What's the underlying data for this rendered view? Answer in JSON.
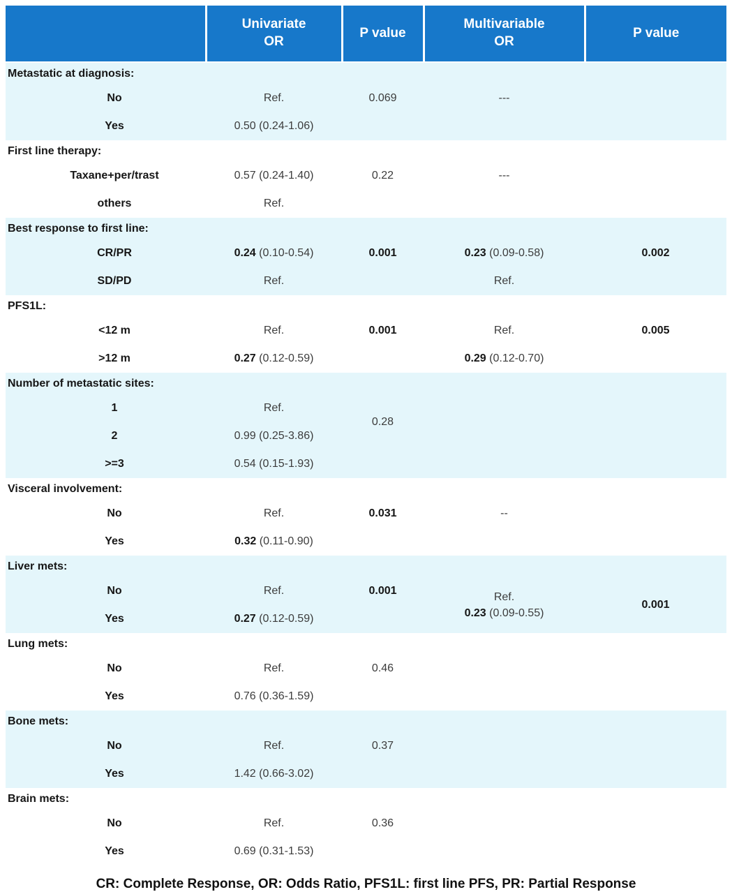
{
  "palette": {
    "header_bg": "#1778CA",
    "header_text": "#FFFFFF",
    "band_blue": "#E4F6FB",
    "band_white": "#FFFFFF",
    "value_text": "#3C3C3C",
    "label_text": "#161616"
  },
  "header": {
    "columns": [
      "",
      "Univariate\nOR",
      "P value",
      "Multivariable\nOR",
      "P value"
    ]
  },
  "rows": [
    {
      "type": "group",
      "band": "blue",
      "label": "Metastatic at diagnosis:"
    },
    {
      "type": "data",
      "band": "blue",
      "cells": [
        {
          "text": "No",
          "bold": true
        },
        {
          "text": "Ref."
        },
        {
          "text": "0.069"
        },
        {
          "text": "---"
        },
        {
          "text": ""
        }
      ]
    },
    {
      "type": "data",
      "band": "blue",
      "cells": [
        {
          "text": "Yes",
          "bold": true
        },
        {
          "text": "0.50 (0.24-1.06)"
        },
        {
          "text": ""
        },
        {
          "text": ""
        },
        {
          "text": ""
        }
      ]
    },
    {
      "type": "group",
      "band": "white",
      "label": "First line therapy:"
    },
    {
      "type": "data",
      "band": "white",
      "cells": [
        {
          "text": "Taxane+per/trast",
          "bold": true
        },
        {
          "text": "0.57 (0.24-1.40)"
        },
        {
          "text": "0.22"
        },
        {
          "text": "---"
        },
        {
          "text": ""
        }
      ]
    },
    {
      "type": "data",
      "band": "white",
      "cells": [
        {
          "text": "others",
          "bold": true
        },
        {
          "text": "Ref."
        },
        {
          "text": ""
        },
        {
          "text": ""
        },
        {
          "text": ""
        }
      ]
    },
    {
      "type": "group",
      "band": "blue",
      "label": "Best response to first line:"
    },
    {
      "type": "data",
      "band": "blue",
      "cells": [
        {
          "text": "CR/PR",
          "bold": true
        },
        {
          "segments": [
            {
              "t": "0.24",
              "b": true
            },
            {
              "t": " (0.10-0.54)"
            }
          ]
        },
        {
          "text": "0.001",
          "bold": true
        },
        {
          "segments": [
            {
              "t": "0.23",
              "b": true
            },
            {
              "t": " (0.09-0.58)"
            }
          ]
        },
        {
          "text": "0.002",
          "bold": true
        }
      ]
    },
    {
      "type": "data",
      "band": "blue",
      "cells": [
        {
          "text": "SD/PD",
          "bold": true
        },
        {
          "text": "Ref."
        },
        {
          "text": ""
        },
        {
          "text": "Ref."
        },
        {
          "text": ""
        }
      ]
    },
    {
      "type": "group",
      "band": "white",
      "label": "PFS1L:"
    },
    {
      "type": "data",
      "band": "white",
      "cells": [
        {
          "text": "<12 m",
          "bold": true
        },
        {
          "text": "Ref."
        },
        {
          "text": "0.001",
          "bold": true
        },
        {
          "text": "Ref."
        },
        {
          "text": "0.005",
          "bold": true
        }
      ]
    },
    {
      "type": "data",
      "band": "white",
      "cells": [
        {
          "text": ">12 m",
          "bold": true
        },
        {
          "segments": [
            {
              "t": "0.27",
              "b": true
            },
            {
              "t": " (0.12-0.59)"
            }
          ]
        },
        {
          "text": ""
        },
        {
          "segments": [
            {
              "t": "0.29",
              "b": true
            },
            {
              "t": " (0.12-0.70)"
            }
          ]
        },
        {
          "text": ""
        }
      ]
    },
    {
      "type": "group",
      "band": "blue",
      "label": "Number of metastatic sites:"
    },
    {
      "type": "data",
      "band": "blue",
      "cells": [
        {
          "text": "1",
          "bold": true
        },
        {
          "text": "Ref."
        },
        {
          "text": "0.28",
          "rowspan": 2
        },
        {
          "text": ""
        },
        {
          "text": ""
        }
      ]
    },
    {
      "type": "data",
      "band": "blue",
      "cells": [
        {
          "text": "2",
          "bold": true
        },
        {
          "text": "0.99 (0.25-3.86)"
        },
        {
          "skip": true
        },
        {
          "text": ""
        },
        {
          "text": ""
        }
      ]
    },
    {
      "type": "data",
      "band": "blue",
      "cells": [
        {
          "text": ">=3",
          "bold": true
        },
        {
          "text": "0.54 (0.15-1.93)"
        },
        {
          "text": ""
        },
        {
          "text": ""
        },
        {
          "text": ""
        }
      ]
    },
    {
      "type": "group",
      "band": "white",
      "label": "Visceral involvement:"
    },
    {
      "type": "data",
      "band": "white",
      "cells": [
        {
          "text": "No",
          "bold": true
        },
        {
          "text": "Ref."
        },
        {
          "text": "0.031",
          "bold": true
        },
        {
          "text": "--"
        },
        {
          "text": ""
        }
      ]
    },
    {
      "type": "data",
      "band": "white",
      "cells": [
        {
          "text": "Yes",
          "bold": true
        },
        {
          "segments": [
            {
              "t": "0.32",
              "b": true
            },
            {
              "t": " (0.11-0.90)"
            }
          ]
        },
        {
          "text": ""
        },
        {
          "text": ""
        },
        {
          "text": ""
        }
      ]
    },
    {
      "type": "group",
      "band": "blue",
      "label": "Liver mets:"
    },
    {
      "type": "data",
      "band": "blue",
      "cells": [
        {
          "text": "No",
          "bold": true
        },
        {
          "text": "Ref."
        },
        {
          "text": "0.001",
          "bold": true
        },
        {
          "lines": [
            [
              {
                "t": "Ref."
              }
            ],
            [
              {
                "t": "0.23",
                "b": true
              },
              {
                "t": " (0.09-0.55)"
              }
            ]
          ],
          "rowspan": 2
        },
        {
          "text": "0.001",
          "bold": true,
          "rowspan": 2
        }
      ]
    },
    {
      "type": "data",
      "band": "blue",
      "cells": [
        {
          "text": "Yes",
          "bold": true
        },
        {
          "segments": [
            {
              "t": "0.27",
              "b": true
            },
            {
              "t": " (0.12-0.59)"
            }
          ]
        },
        {
          "text": ""
        },
        {
          "skip": true
        },
        {
          "skip": true
        }
      ]
    },
    {
      "type": "group",
      "band": "white",
      "label": "Lung mets:"
    },
    {
      "type": "data",
      "band": "white",
      "cells": [
        {
          "text": "No",
          "bold": true
        },
        {
          "text": "Ref."
        },
        {
          "text": "0.46"
        },
        {
          "text": ""
        },
        {
          "text": ""
        }
      ]
    },
    {
      "type": "data",
      "band": "white",
      "cells": [
        {
          "text": "Yes",
          "bold": true
        },
        {
          "text": "0.76 (0.36-1.59)"
        },
        {
          "text": ""
        },
        {
          "text": ""
        },
        {
          "text": ""
        }
      ]
    },
    {
      "type": "group",
      "band": "blue",
      "label": "Bone mets:"
    },
    {
      "type": "data",
      "band": "blue",
      "cells": [
        {
          "text": "No",
          "bold": true
        },
        {
          "text": "Ref."
        },
        {
          "text": "0.37"
        },
        {
          "text": ""
        },
        {
          "text": ""
        }
      ]
    },
    {
      "type": "data",
      "band": "blue",
      "cells": [
        {
          "text": "Yes",
          "bold": true
        },
        {
          "text": "1.42 (0.66-3.02)"
        },
        {
          "text": ""
        },
        {
          "text": ""
        },
        {
          "text": ""
        }
      ]
    },
    {
      "type": "group",
      "band": "white",
      "label": "Brain mets:"
    },
    {
      "type": "data",
      "band": "white",
      "cells": [
        {
          "text": "No",
          "bold": true
        },
        {
          "text": "Ref."
        },
        {
          "text": "0.36"
        },
        {
          "text": ""
        },
        {
          "text": ""
        }
      ]
    },
    {
      "type": "data",
      "band": "white",
      "cells": [
        {
          "text": "Yes",
          "bold": true
        },
        {
          "text": "0.69 (0.31-1.53)"
        },
        {
          "text": ""
        },
        {
          "text": ""
        },
        {
          "text": ""
        }
      ]
    }
  ],
  "footnote": "CR: Complete Response, OR: Odds Ratio, PFS1L: first line PFS, PR: Partial Response"
}
